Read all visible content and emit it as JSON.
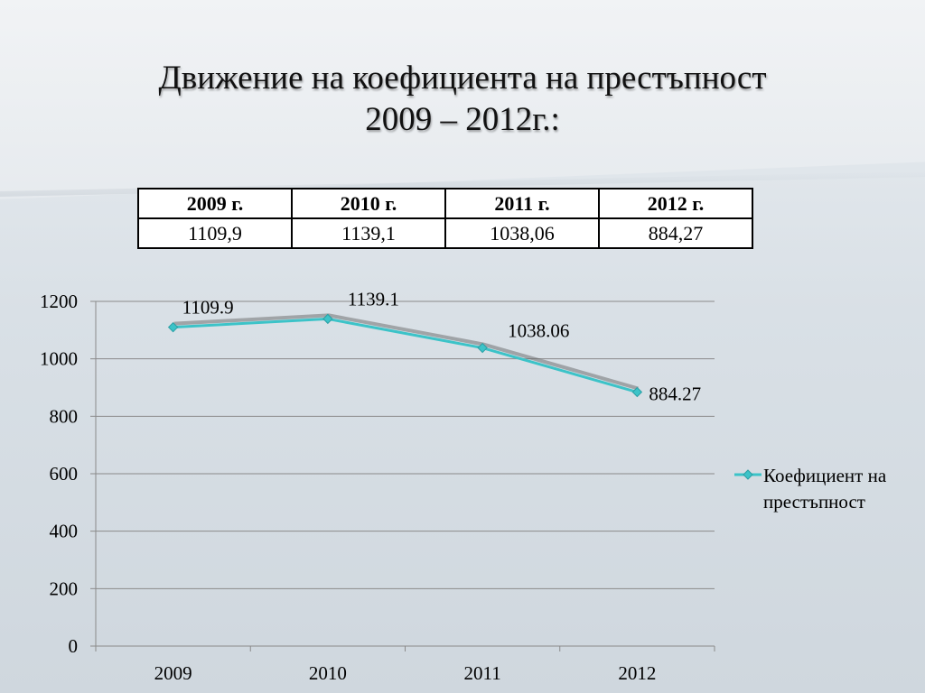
{
  "slide": {
    "title_line1": "Движение на коефициента на престъпност",
    "title_line2": "2009 – 2012г.:"
  },
  "table": {
    "headers": [
      "2009 г.",
      "2010 г.",
      "2011 г.",
      "2012 г."
    ],
    "values": [
      "1109,9",
      "1139,1",
      "1038,06",
      "884,27"
    ]
  },
  "chart_data": {
    "type": "line",
    "categories": [
      "2009",
      "2010",
      "2011",
      "2012"
    ],
    "series": [
      {
        "name": "Коефициент на престъпност",
        "values": [
          1109.9,
          1139.1,
          1038.06,
          884.27
        ],
        "data_labels": [
          "1109.9",
          "1139.1",
          "1038.06",
          "884.27"
        ],
        "color": "#3cc3c8"
      }
    ],
    "ylim": [
      0,
      1200
    ],
    "yticks": [
      0,
      200,
      400,
      600,
      800,
      1000,
      1200
    ],
    "grid": true,
    "legend_position": "right",
    "legend_label_lines": [
      "Коефициент на",
      "престъпност"
    ]
  }
}
